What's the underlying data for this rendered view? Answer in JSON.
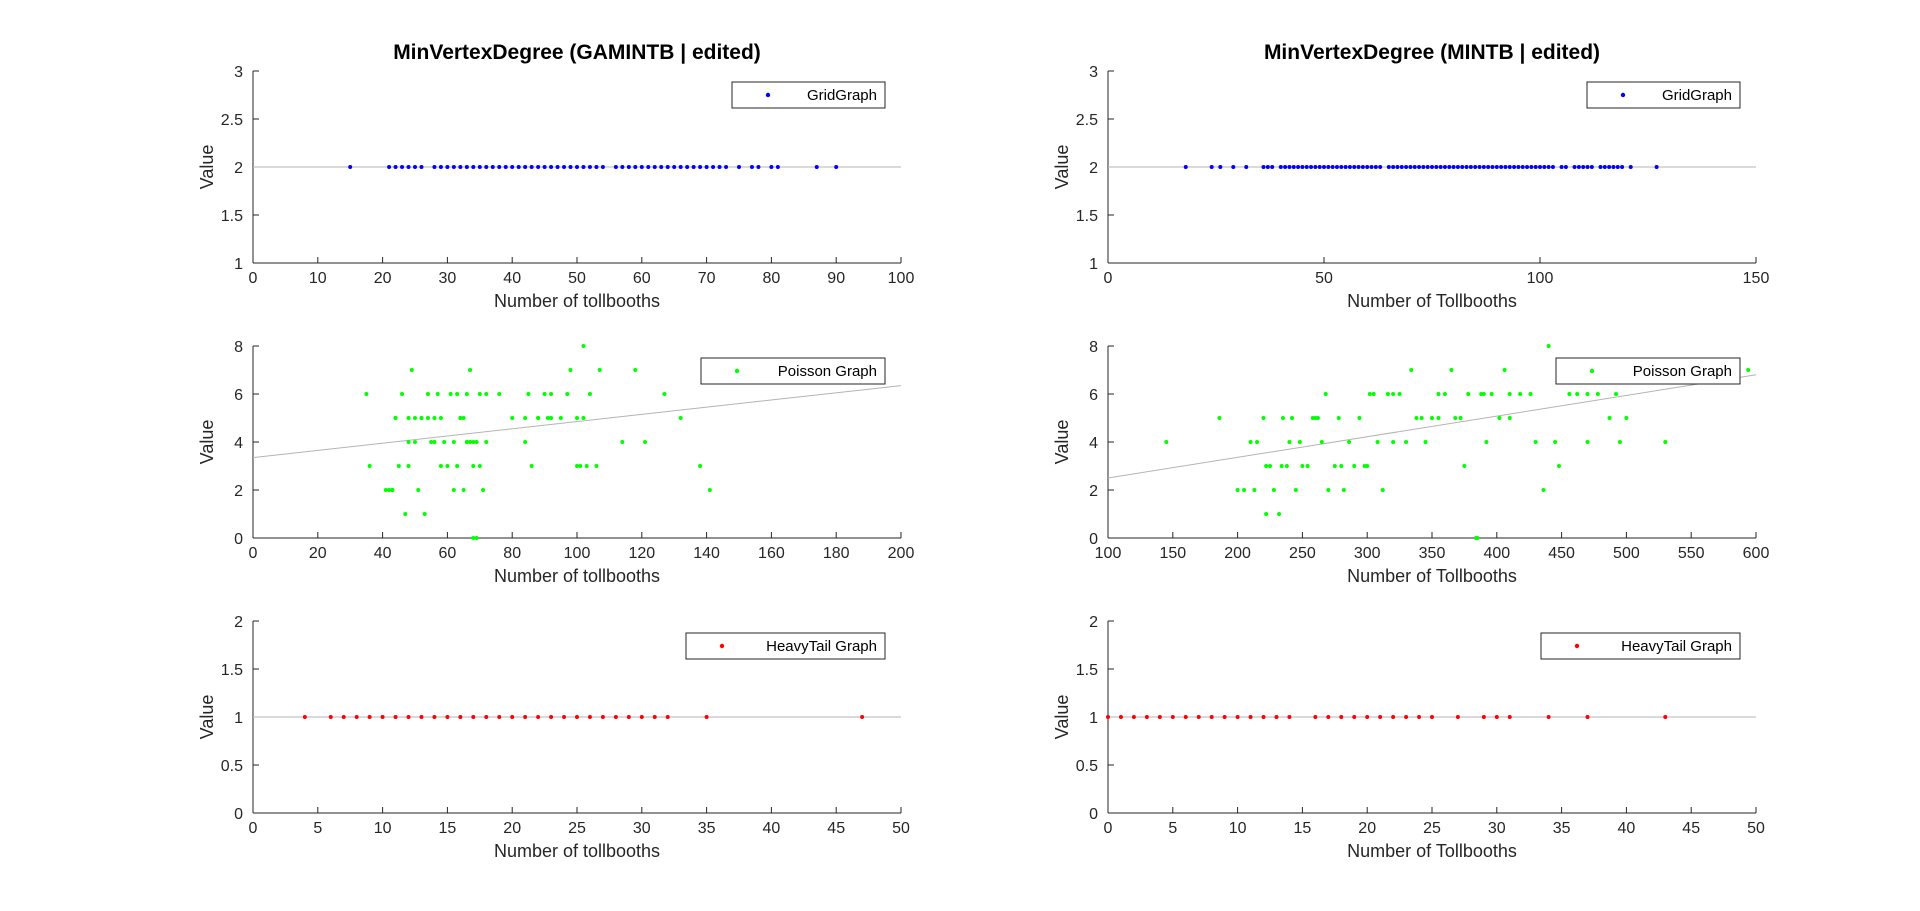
{
  "chart_data": [
    {
      "type": "scatter",
      "title": "MinVertexDegree (GAMINTB | edited)",
      "xlabel": "Number of tollbooths",
      "ylabel": "Value",
      "xlim": [
        0,
        100
      ],
      "ylim": [
        1,
        3
      ],
      "xticks": [
        "0",
        "10",
        "20",
        "30",
        "40",
        "50",
        "60",
        "70",
        "80",
        "90",
        "100"
      ],
      "yticks": [
        "1",
        "1.5",
        "2",
        "2.5",
        "3"
      ],
      "legend": "top-right",
      "series": [
        {
          "name": "GridGraph",
          "color": "#0000ff",
          "x": [
            15,
            21,
            22,
            23,
            24,
            25,
            26,
            28,
            29,
            30,
            31,
            32,
            33,
            34,
            35,
            36,
            37,
            38,
            39,
            40,
            41,
            42,
            43,
            44,
            45,
            46,
            47,
            48,
            49,
            50,
            51,
            52,
            53,
            54,
            56,
            57,
            58,
            59,
            60,
            61,
            62,
            63,
            64,
            65,
            66,
            67,
            68,
            69,
            70,
            71,
            72,
            73,
            75,
            77,
            78,
            80,
            81,
            87,
            90
          ],
          "y": [
            2,
            2,
            2,
            2,
            2,
            2,
            2,
            2,
            2,
            2,
            2,
            2,
            2,
            2,
            2,
            2,
            2,
            2,
            2,
            2,
            2,
            2,
            2,
            2,
            2,
            2,
            2,
            2,
            2,
            2,
            2,
            2,
            2,
            2,
            2,
            2,
            2,
            2,
            2,
            2,
            2,
            2,
            2,
            2,
            2,
            2,
            2,
            2,
            2,
            2,
            2,
            2,
            2,
            2,
            2,
            2,
            2,
            2,
            2
          ]
        }
      ],
      "fit_line": {
        "x": [
          0,
          100
        ],
        "y": [
          2,
          2
        ]
      }
    },
    {
      "type": "scatter",
      "title": "MinVertexDegree (MINTB | edited)",
      "xlabel": "Number of Tollbooths",
      "ylabel": "Value",
      "xlim": [
        0,
        150
      ],
      "ylim": [
        1,
        3
      ],
      "xticks": [
        "0",
        "50",
        "100",
        "150"
      ],
      "yticks": [
        "1",
        "1.5",
        "2",
        "2.5",
        "3"
      ],
      "legend": "top-right",
      "series": [
        {
          "name": "GridGraph",
          "color": "#0000ff",
          "x": [
            18,
            24,
            26,
            29,
            32,
            36,
            37,
            38,
            40,
            41,
            42,
            43,
            44,
            45,
            46,
            47,
            48,
            49,
            50,
            51,
            52,
            53,
            54,
            55,
            56,
            57,
            58,
            59,
            60,
            61,
            62,
            63,
            65,
            66,
            67,
            68,
            69,
            70,
            71,
            72,
            73,
            74,
            75,
            76,
            77,
            78,
            79,
            80,
            81,
            82,
            83,
            84,
            85,
            86,
            87,
            88,
            89,
            90,
            91,
            92,
            93,
            94,
            95,
            96,
            97,
            98,
            99,
            100,
            101,
            102,
            103,
            105,
            106,
            108,
            109,
            110,
            111,
            112,
            114,
            115,
            116,
            117,
            118,
            119,
            121,
            127
          ],
          "y": [
            2,
            2,
            2,
            2,
            2,
            2,
            2,
            2,
            2,
            2,
            2,
            2,
            2,
            2,
            2,
            2,
            2,
            2,
            2,
            2,
            2,
            2,
            2,
            2,
            2,
            2,
            2,
            2,
            2,
            2,
            2,
            2,
            2,
            2,
            2,
            2,
            2,
            2,
            2,
            2,
            2,
            2,
            2,
            2,
            2,
            2,
            2,
            2,
            2,
            2,
            2,
            2,
            2,
            2,
            2,
            2,
            2,
            2,
            2,
            2,
            2,
            2,
            2,
            2,
            2,
            2,
            2,
            2,
            2,
            2,
            2,
            2,
            2,
            2,
            2,
            2,
            2,
            2,
            2,
            2,
            2,
            2,
            2,
            2,
            2,
            2
          ]
        }
      ],
      "fit_line": {
        "x": [
          0,
          150
        ],
        "y": [
          2,
          2
        ]
      }
    },
    {
      "type": "scatter",
      "title": "",
      "xlabel": "Number of tollbooths",
      "ylabel": "Value",
      "xlim": [
        0,
        200
      ],
      "ylim": [
        0,
        8
      ],
      "xticks": [
        "0",
        "20",
        "40",
        "60",
        "80",
        "100",
        "120",
        "140",
        "160",
        "180",
        "200"
      ],
      "yticks": [
        "0",
        "2",
        "4",
        "6",
        "8"
      ],
      "legend": "top-right",
      "series": [
        {
          "name": "Poisson Graph",
          "color": "#00ff00",
          "x": [
            35,
            36,
            41,
            42,
            43,
            44,
            45,
            46,
            47,
            48,
            49,
            50,
            51,
            52,
            53,
            54,
            55,
            56,
            57,
            58,
            59,
            60,
            61,
            62,
            63,
            64,
            65,
            66,
            67,
            68,
            69,
            70,
            71,
            72,
            76,
            80,
            84,
            85,
            86,
            88,
            90,
            91,
            92,
            95,
            97,
            98,
            100,
            101,
            102,
            103,
            104,
            106,
            107,
            114,
            118,
            121,
            127,
            132,
            138,
            141,
            48,
            52,
            56,
            62,
            63,
            65,
            66,
            68,
            70,
            72,
            48,
            66,
            69,
            84,
            88,
            92,
            100,
            102,
            50,
            54,
            58,
            64,
            67,
            44,
            43,
            68
          ],
          "y": [
            6,
            3,
            2,
            2,
            2,
            5,
            3,
            6,
            1,
            3,
            7,
            4,
            2,
            5,
            1,
            6,
            4,
            5,
            6,
            5,
            4,
            3,
            6,
            2,
            6,
            5,
            2,
            6,
            7,
            4,
            4,
            6,
            2,
            6,
            6,
            5,
            5,
            6,
            3,
            5,
            6,
            5,
            5,
            5,
            6,
            7,
            5,
            3,
            8,
            3,
            6,
            3,
            7,
            4,
            7,
            4,
            6,
            5,
            3,
            2,
            5,
            5,
            4,
            4,
            3,
            5,
            4,
            3,
            3,
            4,
            4,
            4,
            0,
            4,
            5,
            6,
            3,
            5,
            5,
            5,
            3,
            5,
            4,
            5,
            2,
            0
          ],
          "note": "scatter"
        }
      ],
      "fit_line": {
        "x": [
          0,
          200
        ],
        "y": [
          3.35,
          6.35
        ]
      }
    },
    {
      "type": "scatter",
      "title": "",
      "xlabel": "Number of Tollbooths",
      "ylabel": "Value",
      "xlim": [
        100,
        600
      ],
      "ylim": [
        0,
        8
      ],
      "xticks": [
        "100",
        "150",
        "200",
        "250",
        "300",
        "350",
        "400",
        "450",
        "500",
        "550",
        "600"
      ],
      "yticks": [
        "0",
        "2",
        "4",
        "6",
        "8"
      ],
      "legend": "top-right",
      "series": [
        {
          "name": "Poisson Graph",
          "color": "#00ff00",
          "x": [
            145,
            186,
            200,
            205,
            210,
            213,
            220,
            222,
            225,
            228,
            232,
            234,
            238,
            240,
            242,
            245,
            248,
            250,
            254,
            258,
            262,
            265,
            268,
            270,
            275,
            278,
            282,
            286,
            290,
            294,
            298,
            302,
            305,
            308,
            312,
            316,
            320,
            325,
            330,
            334,
            338,
            342,
            345,
            350,
            355,
            360,
            365,
            368,
            372,
            378,
            384,
            388,
            392,
            396,
            402,
            406,
            410,
            418,
            426,
            436,
            440,
            448,
            456,
            462,
            470,
            478,
            487,
            492,
            500,
            530,
            594,
            215,
            235,
            260,
            280,
            300,
            320,
            355,
            375,
            390,
            410,
            430,
            445,
            470,
            495,
            222,
            385
          ],
          "y": [
            4,
            5,
            2,
            2,
            4,
            2,
            5,
            3,
            3,
            2,
            1,
            3,
            3,
            4,
            5,
            2,
            4,
            3,
            3,
            5,
            5,
            4,
            6,
            2,
            3,
            5,
            2,
            4,
            3,
            5,
            3,
            6,
            6,
            4,
            2,
            6,
            4,
            6,
            4,
            7,
            5,
            5,
            4,
            5,
            6,
            6,
            7,
            5,
            5,
            6,
            0,
            6,
            4,
            6,
            5,
            7,
            5,
            6,
            6,
            2,
            8,
            3,
            6,
            6,
            4,
            6,
            5,
            6,
            5,
            4,
            7,
            4,
            5,
            5,
            3,
            3,
            6,
            5,
            3,
            6,
            6,
            4,
            4,
            6,
            4,
            1,
            0
          ]
        }
      ],
      "fit_line": {
        "x": [
          100,
          600
        ],
        "y": [
          2.5,
          6.8
        ]
      }
    },
    {
      "type": "scatter",
      "title": "",
      "xlabel": "Number of tollbooths",
      "ylabel": "Value",
      "xlim": [
        0,
        50
      ],
      "ylim": [
        0,
        2
      ],
      "xticks": [
        "0",
        "5",
        "10",
        "15",
        "20",
        "25",
        "30",
        "35",
        "40",
        "45",
        "50"
      ],
      "yticks": [
        "0",
        "0.5",
        "1",
        "1.5",
        "2"
      ],
      "legend": "top-right",
      "series": [
        {
          "name": "HeavyTail Graph",
          "color": "#ff0000",
          "x": [
            4,
            6,
            7,
            8,
            9,
            10,
            11,
            12,
            13,
            14,
            15,
            16,
            17,
            18,
            19,
            20,
            21,
            22,
            23,
            24,
            25,
            26,
            27,
            28,
            29,
            30,
            31,
            32,
            35,
            47
          ],
          "y": [
            1,
            1,
            1,
            1,
            1,
            1,
            1,
            1,
            1,
            1,
            1,
            1,
            1,
            1,
            1,
            1,
            1,
            1,
            1,
            1,
            1,
            1,
            1,
            1,
            1,
            1,
            1,
            1,
            1,
            1
          ]
        }
      ],
      "fit_line": {
        "x": [
          0,
          50
        ],
        "y": [
          1,
          1
        ]
      }
    },
    {
      "type": "scatter",
      "title": "",
      "xlabel": "Number of Tollbooths",
      "ylabel": "Value",
      "xlim": [
        0,
        50
      ],
      "ylim": [
        0,
        2
      ],
      "xticks": [
        "0",
        "5",
        "10",
        "15",
        "20",
        "25",
        "30",
        "35",
        "40",
        "45",
        "50"
      ],
      "yticks": [
        "0",
        "0.5",
        "1",
        "1.5",
        "2"
      ],
      "legend": "top-right",
      "series": [
        {
          "name": "HeavyTail Graph",
          "color": "#ff0000",
          "x": [
            0,
            1,
            2,
            3,
            4,
            5,
            6,
            7,
            8,
            9,
            10,
            11,
            12,
            13,
            14,
            16,
            17,
            18,
            19,
            20,
            21,
            22,
            23,
            24,
            25,
            27,
            29,
            30,
            31,
            34,
            37,
            43
          ],
          "y": [
            1,
            1,
            1,
            1,
            1,
            1,
            1,
            1,
            1,
            1,
            1,
            1,
            1,
            1,
            1,
            1,
            1,
            1,
            1,
            1,
            1,
            1,
            1,
            1,
            1,
            1,
            1,
            1,
            1,
            1,
            1,
            1
          ]
        }
      ],
      "fit_line": {
        "x": [
          0,
          50
        ],
        "y": [
          1,
          1
        ]
      }
    }
  ]
}
